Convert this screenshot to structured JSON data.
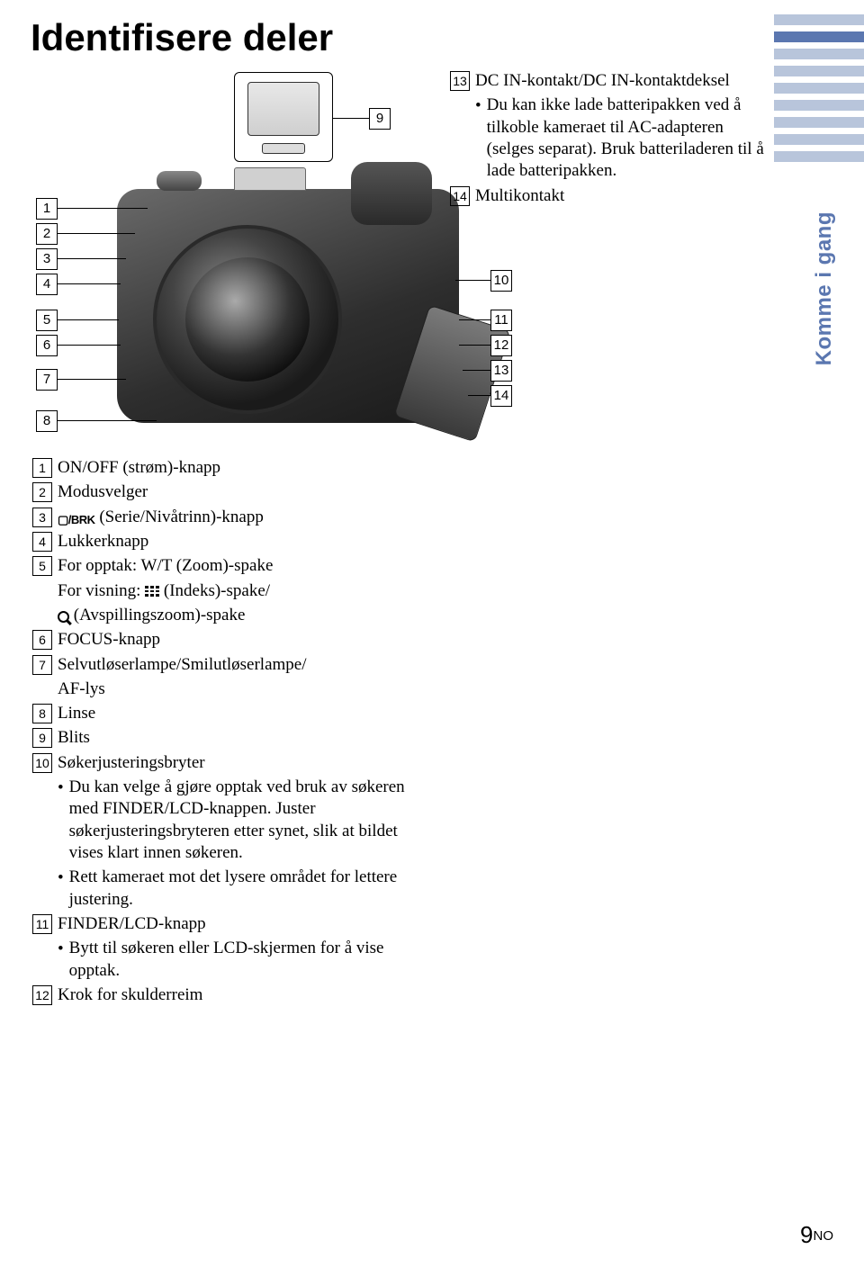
{
  "title": "Identifisere deler",
  "side_tab_label": "Komme i gang",
  "active_tab_index": 1,
  "tab_count": 9,
  "colors": {
    "accent": "#5b77b0",
    "tab_inactive": "#b8c5db"
  },
  "callouts": {
    "left": [
      "1",
      "2",
      "3",
      "4",
      "5",
      "6",
      "7",
      "8"
    ],
    "top_right": "9",
    "right": [
      "10",
      "11",
      "12",
      "13",
      "14"
    ]
  },
  "list_left": [
    {
      "n": "1",
      "text": "ON/OFF (strøm)-knapp"
    },
    {
      "n": "2",
      "text": "Modusvelger"
    },
    {
      "n": "3",
      "prefix_icon": "burst",
      "text": " (Serie/Nivåtrinn)-knapp"
    },
    {
      "n": "4",
      "text": "Lukkerknapp"
    },
    {
      "n": "5",
      "text": "For opptak: W/T (Zoom)-spake",
      "subs": [
        {
          "icon": "grid",
          "text": "For visning: ",
          "after": " (Indeks)-spake/"
        },
        {
          "icon": "mag",
          "text": "",
          "after": " (Avspillingszoom)-spake"
        }
      ]
    },
    {
      "n": "6",
      "text": "FOCUS-knapp"
    },
    {
      "n": "7",
      "text": "Selvutløserlampe/Smilutløserlampe/",
      "subs_plain": [
        "AF-lys"
      ]
    },
    {
      "n": "8",
      "text": "Linse"
    },
    {
      "n": "9",
      "text": "Blits"
    },
    {
      "n": "10",
      "text": "Søkerjusteringsbryter",
      "bullets": [
        "Du kan velge å gjøre opptak ved bruk av søkeren med FINDER/LCD-knappen. Juster søkerjusteringsbryteren etter synet, slik at bildet vises klart innen søkeren.",
        "Rett kameraet mot det lysere området for lettere justering."
      ]
    },
    {
      "n": "11",
      "text": "FINDER/LCD-knapp",
      "bullets": [
        "Bytt til søkeren eller LCD-skjermen for å vise opptak."
      ]
    },
    {
      "n": "12",
      "text": "Krok for skulderreim"
    }
  ],
  "list_right": [
    {
      "n": "13",
      "text": "DC IN-kontakt/DC IN-kontaktdeksel",
      "bullets": [
        "Du kan ikke lade batteripakken ved å tilkoble kameraet til AC-adapteren (selges separat). Bruk batteriladeren til å lade batteripakken."
      ]
    },
    {
      "n": "14",
      "text": "Multikontakt"
    }
  ],
  "page_number": {
    "big": "9",
    "suffix": "NO"
  }
}
